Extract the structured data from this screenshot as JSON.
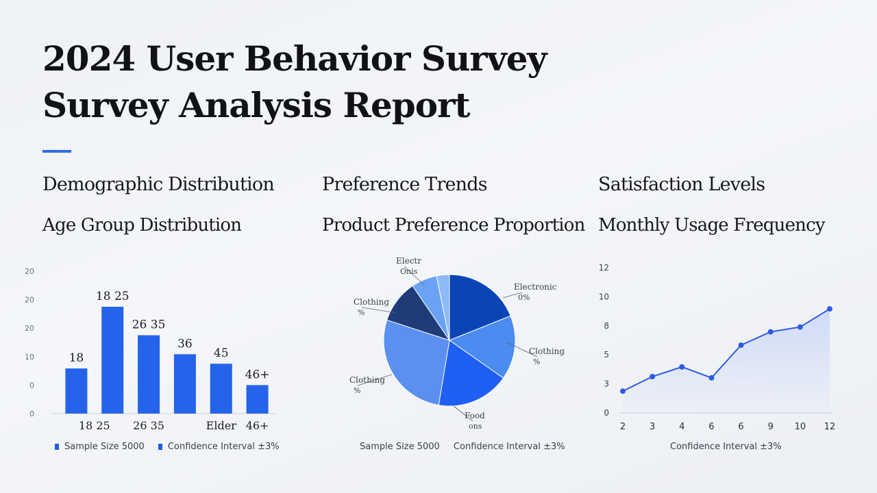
{
  "report": {
    "title_line1": "2024 User Behavior Survey",
    "title_line2": "Survey Analysis Report"
  },
  "sections": [
    {
      "heading": "Demographic Distribution",
      "subheading": "Age Group Distribution"
    },
    {
      "heading": "Preference Trends",
      "subheading": "Product Preference Proportion"
    },
    {
      "heading": "Satisfaction Levels",
      "subheading": "Monthly Usage Frequency"
    }
  ],
  "legends": {
    "bar": [
      "Sample Size 5000",
      "Confidence Interval ±3%"
    ],
    "pie": [
      "Sample Size 5000",
      "Confidence Interval ±3%"
    ],
    "line": [
      "Confidence Interval ±3%"
    ]
  },
  "colors": {
    "accent": "#2f6fe3",
    "bar": "#2563eb",
    "line": "#2d5be3",
    "area": "#c9d6f7"
  },
  "chart_data": [
    {
      "type": "bar",
      "title": "Age Group Distribution",
      "y_ticks": [
        "0",
        "0",
        "10",
        "20",
        "20",
        "20"
      ],
      "ylim": [
        0,
        30
      ],
      "bars": [
        {
          "label": "18",
          "value": 9.5
        },
        {
          "label": "18 25",
          "value": 22.5
        },
        {
          "label": "26 35",
          "value": 16.5
        },
        {
          "label": "36",
          "value": 12.5
        },
        {
          "label": "45",
          "value": 10.5
        },
        {
          "label": "46+",
          "value": 6
        }
      ],
      "x_ticks": [
        {
          "label": "18 25",
          "bar": 0.5
        },
        {
          "label": "26 35",
          "bar": 2
        },
        {
          "label": "Elder",
          "bar": 4
        },
        {
          "label": "46+",
          "bar": 5
        }
      ],
      "legend": [
        "Sample Size 5000",
        "Confidence Interval ±3%"
      ]
    },
    {
      "type": "pie",
      "title": "Product Preference Proportion",
      "slices": [
        {
          "value": 18,
          "color": "#0b45b5"
        },
        {
          "value": 15,
          "color": "#4a8cf0"
        },
        {
          "value": 17,
          "color": "#1f5ff2"
        },
        {
          "value": 26,
          "color": "#5b8ff0"
        },
        {
          "value": 10,
          "color": "#1f3c78"
        },
        {
          "value": 6,
          "color": "#6aa3f5"
        },
        {
          "value": 3,
          "color": "#8fbaf8"
        }
      ],
      "labels": [
        {
          "line1": "Electr",
          "line2": "Onis"
        },
        {
          "line1": "Electronic",
          "line2": "0%"
        },
        {
          "line1": "Clothing",
          "line2": "%"
        },
        {
          "line1": "Food",
          "line2": "ons"
        },
        {
          "line1": "Clothing",
          "line2": "%"
        },
        {
          "line1": "Clothing",
          "line2": "%"
        }
      ],
      "legend": [
        "Sample Size 5000",
        "Confidence Interval ±3%"
      ]
    },
    {
      "type": "line",
      "title": "Monthly Usage Frequency",
      "x": [
        2,
        3,
        4,
        6,
        6,
        9,
        10,
        12
      ],
      "y": [
        1.8,
        3.0,
        3.8,
        2.9,
        5.6,
        6.7,
        7.1,
        8.6
      ],
      "ylim": [
        0,
        12
      ],
      "y_ticks": [
        "0",
        "3",
        "5",
        "8",
        "10",
        "12"
      ],
      "x_ticks": [
        "2",
        "3",
        "4",
        "6",
        "6",
        "9",
        "10",
        "12"
      ],
      "legend": [
        "Confidence Interval ±3%"
      ]
    }
  ]
}
